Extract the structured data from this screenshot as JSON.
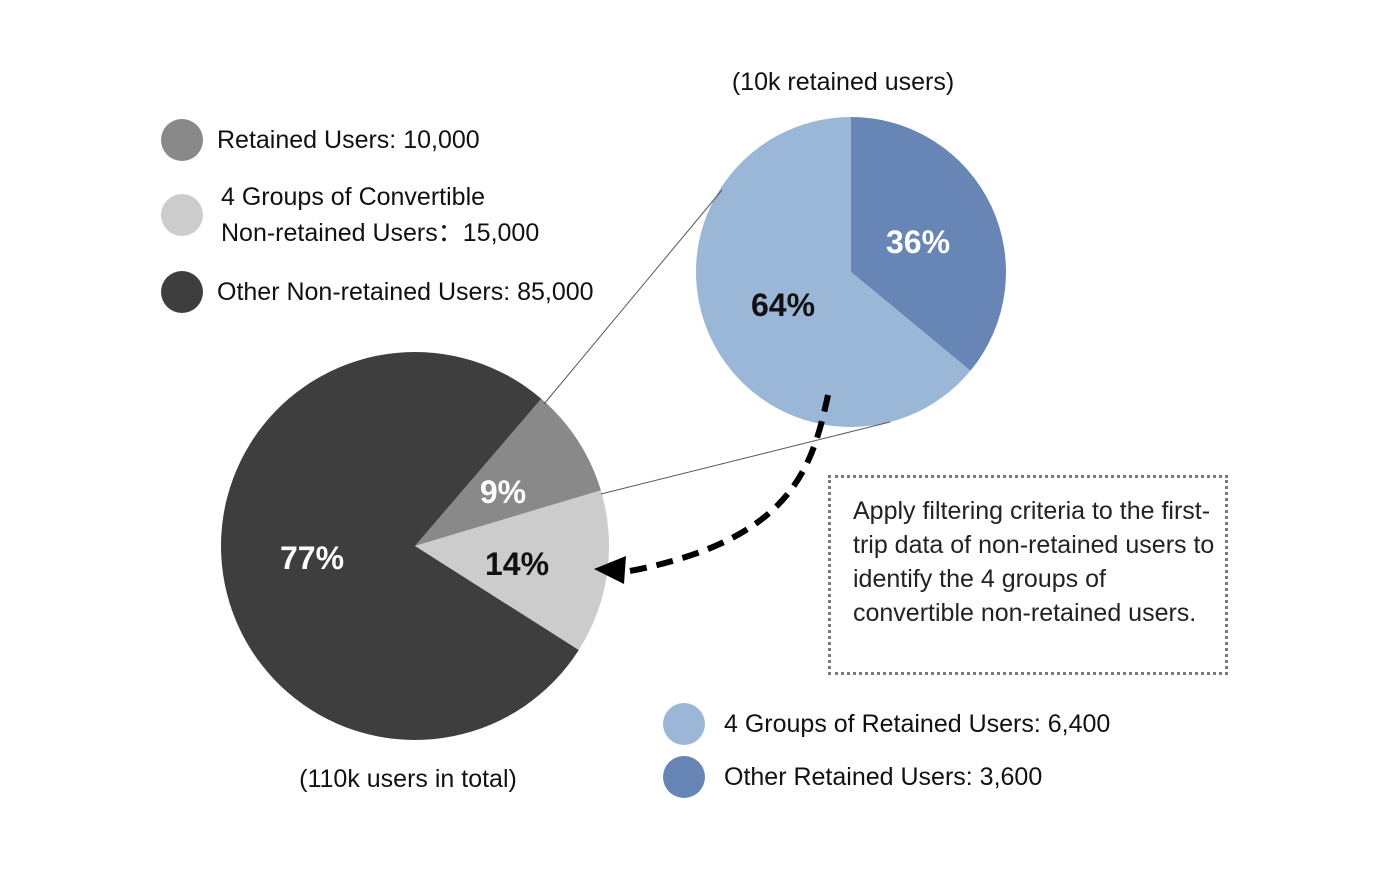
{
  "chart_data": [
    {
      "type": "pie",
      "title": "(110k users in total)",
      "slices": [
        {
          "key": "retained",
          "label": "Retained Users",
          "value": 10000,
          "percent_label": "9%",
          "color": "#898989",
          "text_color": "#ffffff"
        },
        {
          "key": "convertible",
          "label": "4 Groups of Convertible Non-retained Users",
          "value": 15000,
          "percent_label": "14%",
          "color": "#cccccc",
          "text_color": "#111111"
        },
        {
          "key": "other_non_retained",
          "label": "Other Non-retained Users",
          "value": 85000,
          "percent_label": "77%",
          "color": "#3e3e3e",
          "text_color": "#ffffff"
        }
      ]
    },
    {
      "type": "pie",
      "title": "(10k retained users)",
      "slices": [
        {
          "key": "other_retained",
          "label": "Other Retained Users",
          "value": 3600,
          "percent_label": "36%",
          "color": "#6886b5",
          "text_color": "#ffffff"
        },
        {
          "key": "four_groups_retained",
          "label": "4 Groups of Retained Users",
          "value": 6400,
          "percent_label": "64%",
          "color": "#9bb7d7",
          "text_color": "#111111"
        }
      ]
    }
  ],
  "legend_top": [
    {
      "text": "Retained Users: 10,000",
      "color": "#898989"
    },
    {
      "text": "4 Groups of Convertible\nNon-retained Users：15,000",
      "color": "#cccccc"
    },
    {
      "text": "Other Non-retained Users: 85,000",
      "color": "#3e3e3e"
    }
  ],
  "legend_bottom": [
    {
      "text": "4 Groups of Retained Users: 6,400",
      "color": "#9bb7d7"
    },
    {
      "text": "Other Retained Users: 3,600",
      "color": "#6886b5"
    }
  ],
  "captions": {
    "main_pie": "(110k users in total)",
    "retained_pie": "(10k retained users)"
  },
  "note": "Apply filtering criteria to the first-trip data of non-retained users to identify the 4 groups of convertible non-retained users."
}
